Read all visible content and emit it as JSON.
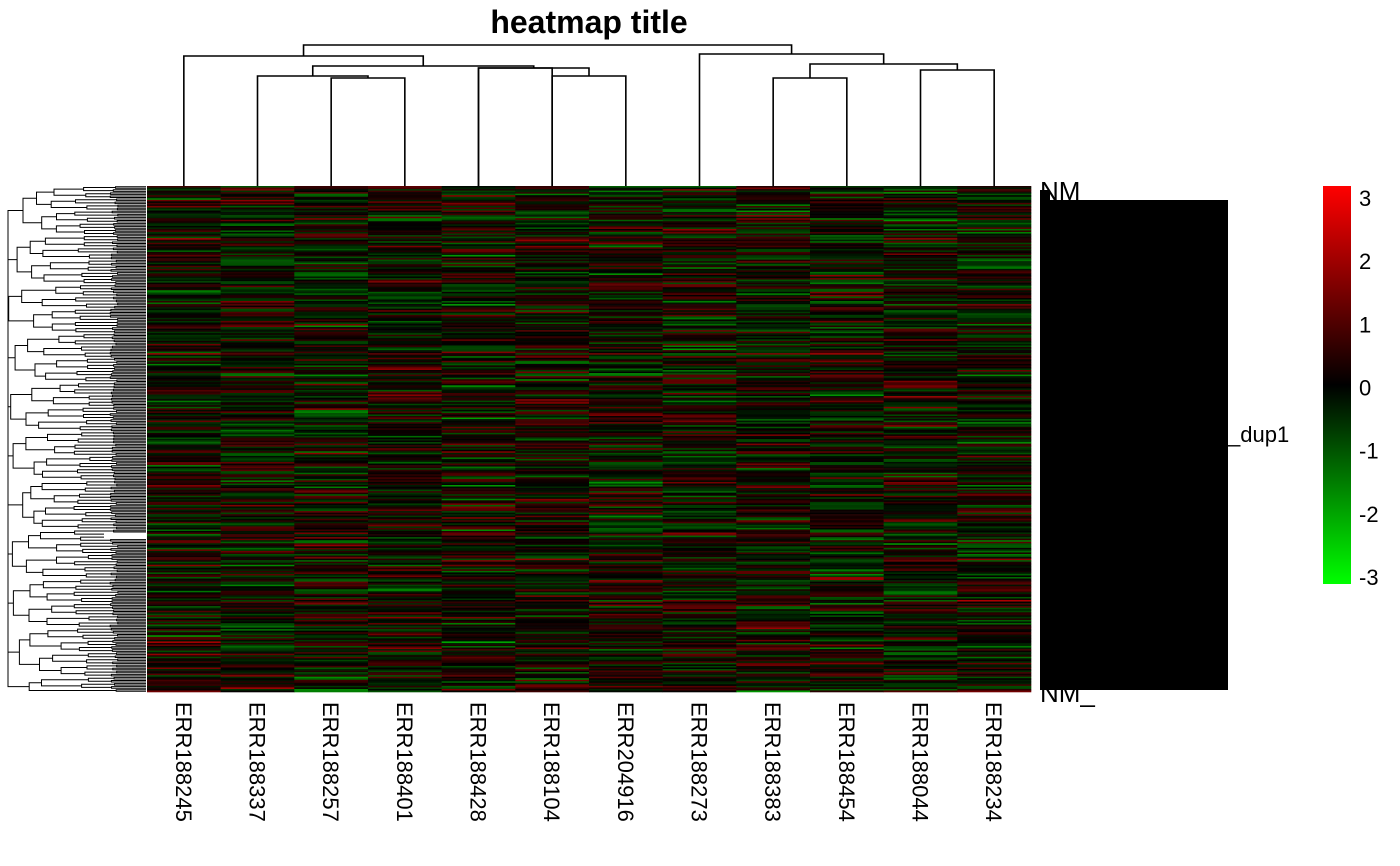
{
  "chart_data": {
    "type": "heatmap",
    "title": "heatmap title",
    "columns": [
      "ERR188245",
      "ERR188337",
      "ERR188257",
      "ERR188401",
      "ERR188428",
      "ERR188104",
      "ERR204916",
      "ERR188273",
      "ERR188383",
      "ERR188454",
      "ERR188044",
      "ERR188234"
    ],
    "row_label_fragments": [
      "NM_",
      "_dup1",
      "NM_"
    ],
    "color_scale": {
      "min": -3,
      "max": 3,
      "low_color": "#00ff00",
      "mid_color": "#000000",
      "high_color": "#ff0000",
      "ticks": [
        3,
        2,
        1,
        0,
        -1,
        -2,
        -3
      ]
    },
    "column_dendrogram": true,
    "row_dendrogram": true,
    "row_count_approx": 330
  },
  "legend_ticks": [
    "3",
    "2",
    "1",
    "0",
    "-1",
    "-2",
    "-3"
  ]
}
